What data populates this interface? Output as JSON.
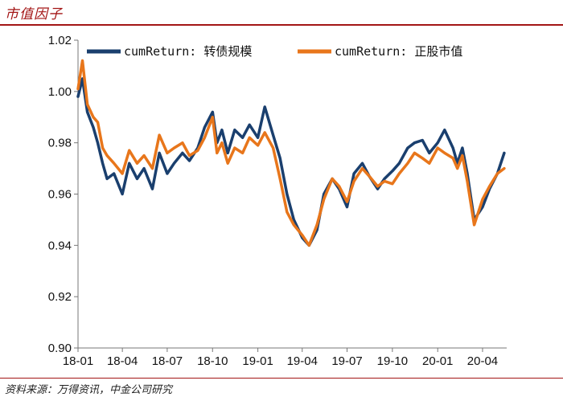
{
  "header": {
    "title": "市值因子"
  },
  "footer": {
    "source": "资料来源：万得资讯，中金公司研究"
  },
  "colors": {
    "accent": "#a31515",
    "series_blue": "#1a3f6e",
    "series_orange": "#e8761b"
  },
  "chart_data": {
    "type": "line",
    "x_ticks": [
      "18-01",
      "18-04",
      "18-07",
      "18-10",
      "19-01",
      "19-04",
      "19-07",
      "19-10",
      "20-01",
      "20-04"
    ],
    "ylim": [
      0.9,
      1.02
    ],
    "y_ticks": [
      0.9,
      0.92,
      0.94,
      0.96,
      0.98,
      1.0,
      1.02
    ],
    "y_tick_labels": [
      "0.90",
      "0.92",
      "0.94",
      "0.96",
      "0.98",
      "1.00",
      "1.02"
    ],
    "legend_position": "top",
    "grid": false,
    "series": [
      {
        "name": "cumReturn: 转债规模",
        "color": "#1a3f6e",
        "x": [
          "2018-01-01",
          "2018-01-10",
          "2018-01-20",
          "2018-02-01",
          "2018-02-10",
          "2018-02-20",
          "2018-03-01",
          "2018-03-15",
          "2018-04-01",
          "2018-04-15",
          "2018-05-01",
          "2018-05-15",
          "2018-06-01",
          "2018-06-15",
          "2018-07-01",
          "2018-07-15",
          "2018-08-01",
          "2018-08-15",
          "2018-09-01",
          "2018-09-15",
          "2018-10-01",
          "2018-10-10",
          "2018-10-20",
          "2018-11-01",
          "2018-11-15",
          "2018-12-01",
          "2018-12-15",
          "2019-01-01",
          "2019-01-15",
          "2019-02-01",
          "2019-02-15",
          "2019-03-01",
          "2019-03-15",
          "2019-04-01",
          "2019-04-15",
          "2019-05-01",
          "2019-05-15",
          "2019-06-01",
          "2019-06-15",
          "2019-07-01",
          "2019-07-15",
          "2019-08-01",
          "2019-08-15",
          "2019-09-01",
          "2019-09-15",
          "2019-10-01",
          "2019-10-15",
          "2019-11-01",
          "2019-11-15",
          "2019-12-01",
          "2019-12-15",
          "2020-01-01",
          "2020-01-15",
          "2020-02-01",
          "2020-02-10",
          "2020-02-20",
          "2020-03-01",
          "2020-03-15",
          "2020-04-01",
          "2020-04-15",
          "2020-05-01",
          "2020-05-15"
        ],
        "values": [
          0.998,
          1.005,
          0.992,
          0.986,
          0.98,
          0.972,
          0.966,
          0.968,
          0.96,
          0.972,
          0.966,
          0.97,
          0.962,
          0.976,
          0.968,
          0.972,
          0.976,
          0.973,
          0.978,
          0.986,
          0.992,
          0.98,
          0.985,
          0.976,
          0.985,
          0.982,
          0.987,
          0.982,
          0.994,
          0.983,
          0.974,
          0.96,
          0.95,
          0.943,
          0.94,
          0.946,
          0.96,
          0.966,
          0.962,
          0.955,
          0.968,
          0.972,
          0.967,
          0.962,
          0.966,
          0.969,
          0.972,
          0.978,
          0.98,
          0.981,
          0.976,
          0.98,
          0.985,
          0.978,
          0.972,
          0.978,
          0.968,
          0.95,
          0.955,
          0.962,
          0.968,
          0.976
        ]
      },
      {
        "name": "cumReturn: 正股市值",
        "color": "#e8761b",
        "x": [
          "2018-01-01",
          "2018-01-10",
          "2018-01-20",
          "2018-02-01",
          "2018-02-10",
          "2018-02-20",
          "2018-03-01",
          "2018-03-15",
          "2018-04-01",
          "2018-04-15",
          "2018-05-01",
          "2018-05-15",
          "2018-06-01",
          "2018-06-15",
          "2018-07-01",
          "2018-07-15",
          "2018-08-01",
          "2018-08-15",
          "2018-09-01",
          "2018-09-15",
          "2018-10-01",
          "2018-10-10",
          "2018-10-20",
          "2018-11-01",
          "2018-11-15",
          "2018-12-01",
          "2018-12-15",
          "2019-01-01",
          "2019-01-15",
          "2019-02-01",
          "2019-02-15",
          "2019-03-01",
          "2019-03-15",
          "2019-04-01",
          "2019-04-15",
          "2019-05-01",
          "2019-05-15",
          "2019-06-01",
          "2019-06-15",
          "2019-07-01",
          "2019-07-15",
          "2019-08-01",
          "2019-08-15",
          "2019-09-01",
          "2019-09-15",
          "2019-10-01",
          "2019-10-15",
          "2019-11-01",
          "2019-11-15",
          "2019-12-01",
          "2019-12-15",
          "2020-01-01",
          "2020-01-15",
          "2020-02-01",
          "2020-02-10",
          "2020-02-20",
          "2020-03-01",
          "2020-03-15",
          "2020-04-01",
          "2020-04-15",
          "2020-05-01",
          "2020-05-15"
        ],
        "values": [
          1.001,
          1.012,
          0.995,
          0.99,
          0.988,
          0.978,
          0.975,
          0.972,
          0.968,
          0.977,
          0.972,
          0.975,
          0.97,
          0.983,
          0.976,
          0.978,
          0.98,
          0.975,
          0.977,
          0.982,
          0.99,
          0.976,
          0.98,
          0.972,
          0.978,
          0.976,
          0.982,
          0.979,
          0.984,
          0.978,
          0.966,
          0.953,
          0.948,
          0.944,
          0.94,
          0.948,
          0.958,
          0.966,
          0.963,
          0.957,
          0.965,
          0.97,
          0.967,
          0.963,
          0.965,
          0.964,
          0.968,
          0.972,
          0.976,
          0.974,
          0.972,
          0.978,
          0.976,
          0.974,
          0.97,
          0.975,
          0.965,
          0.948,
          0.958,
          0.963,
          0.968,
          0.97
        ]
      }
    ]
  }
}
